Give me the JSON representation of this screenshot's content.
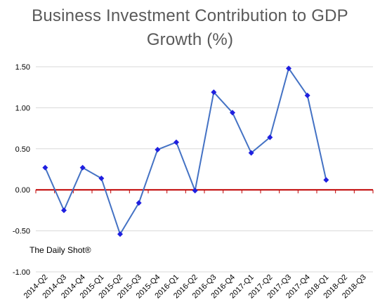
{
  "chart_data": {
    "type": "line",
    "title_lines": [
      "Business Investment Contribution to GDP",
      "Growth (%)"
    ],
    "title": "Business Investment Contribution to GDP Growth (%)",
    "categories": [
      "2014-Q2",
      "2014-Q3",
      "2014-Q4",
      "2015-Q1",
      "2015-Q2",
      "2015-Q3",
      "2015-Q4",
      "2016-Q1",
      "2016-Q2",
      "2016-Q3",
      "2016-Q4",
      "2017-Q1",
      "2017-Q2",
      "2017-Q3",
      "2017-Q4",
      "2018-Q1",
      "2018-Q2",
      "2018-Q3"
    ],
    "series": [
      {
        "values": [
          0.27,
          -0.25,
          0.27,
          0.14,
          -0.54,
          -0.16,
          0.49,
          0.58,
          -0.01,
          1.19,
          0.94,
          0.45,
          0.64,
          1.48,
          1.15,
          0.12,
          null,
          null
        ],
        "color": "#4472C4",
        "marker_color": "#1F1FE0"
      }
    ],
    "ylim": [
      -1.0,
      1.5
    ],
    "yticks": [
      -1.0,
      -0.5,
      0.0,
      0.5,
      1.0,
      1.5
    ],
    "ytick_labels": [
      "-1.00",
      "-0.50",
      "0.00",
      "0.50",
      "1.00",
      "1.50"
    ],
    "gridlines": true,
    "zero_line_color": "#C00000",
    "annotation": "The Daily Shot®",
    "xlabel": "",
    "ylabel": ""
  }
}
